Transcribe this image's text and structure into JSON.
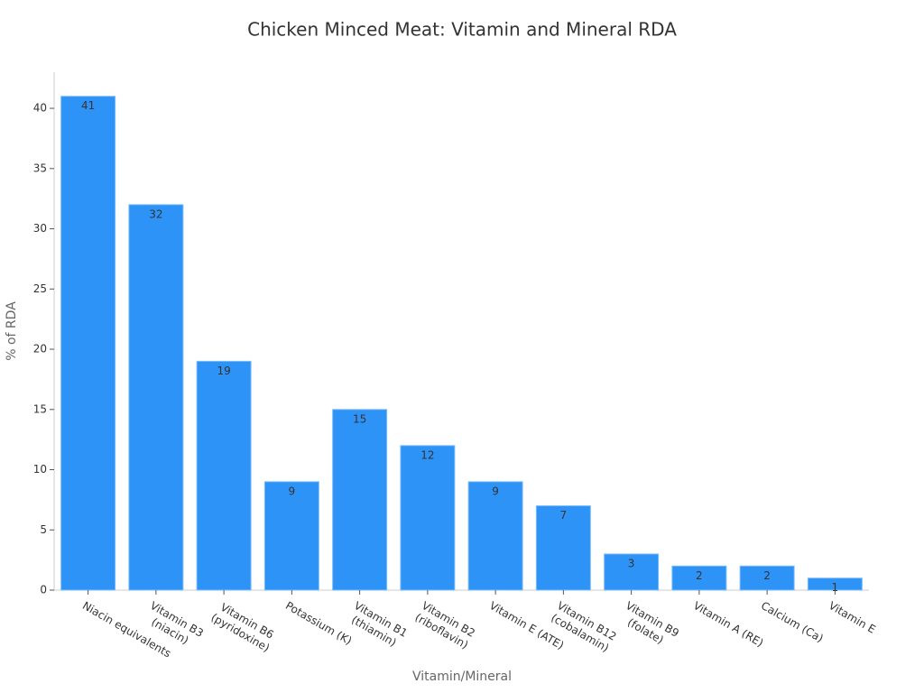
{
  "chart_data": {
    "type": "bar",
    "title": "Chicken Minced Meat: Vitamin and Mineral RDA",
    "x_label": "Vitamin/Mineral",
    "y_label": "% of RDA",
    "categories": [
      "Niacin equivalents",
      "Vitamin B3\n(niacin)",
      "Vitamin B6\n(pyridoxine)",
      "Potassium (K)",
      "Vitamin B1\n(thiamin)",
      "Vitamin B2\n(riboflavin)",
      "Vitamin E (ATE)",
      "Vitamin B12\n(cobalamin)",
      "Vitamin B9\n(folate)",
      "Vitamin A (RE)",
      "Calcium (Ca)",
      "Vitamin E"
    ],
    "values": [
      41,
      32,
      19,
      9,
      15,
      12,
      9,
      7,
      3,
      2,
      2,
      1
    ],
    "color": "#2e93f7",
    "ylim": [
      0,
      43
    ],
    "yticks": [
      0,
      5,
      10,
      15,
      20,
      25,
      30,
      35,
      40
    ],
    "grid": false
  }
}
